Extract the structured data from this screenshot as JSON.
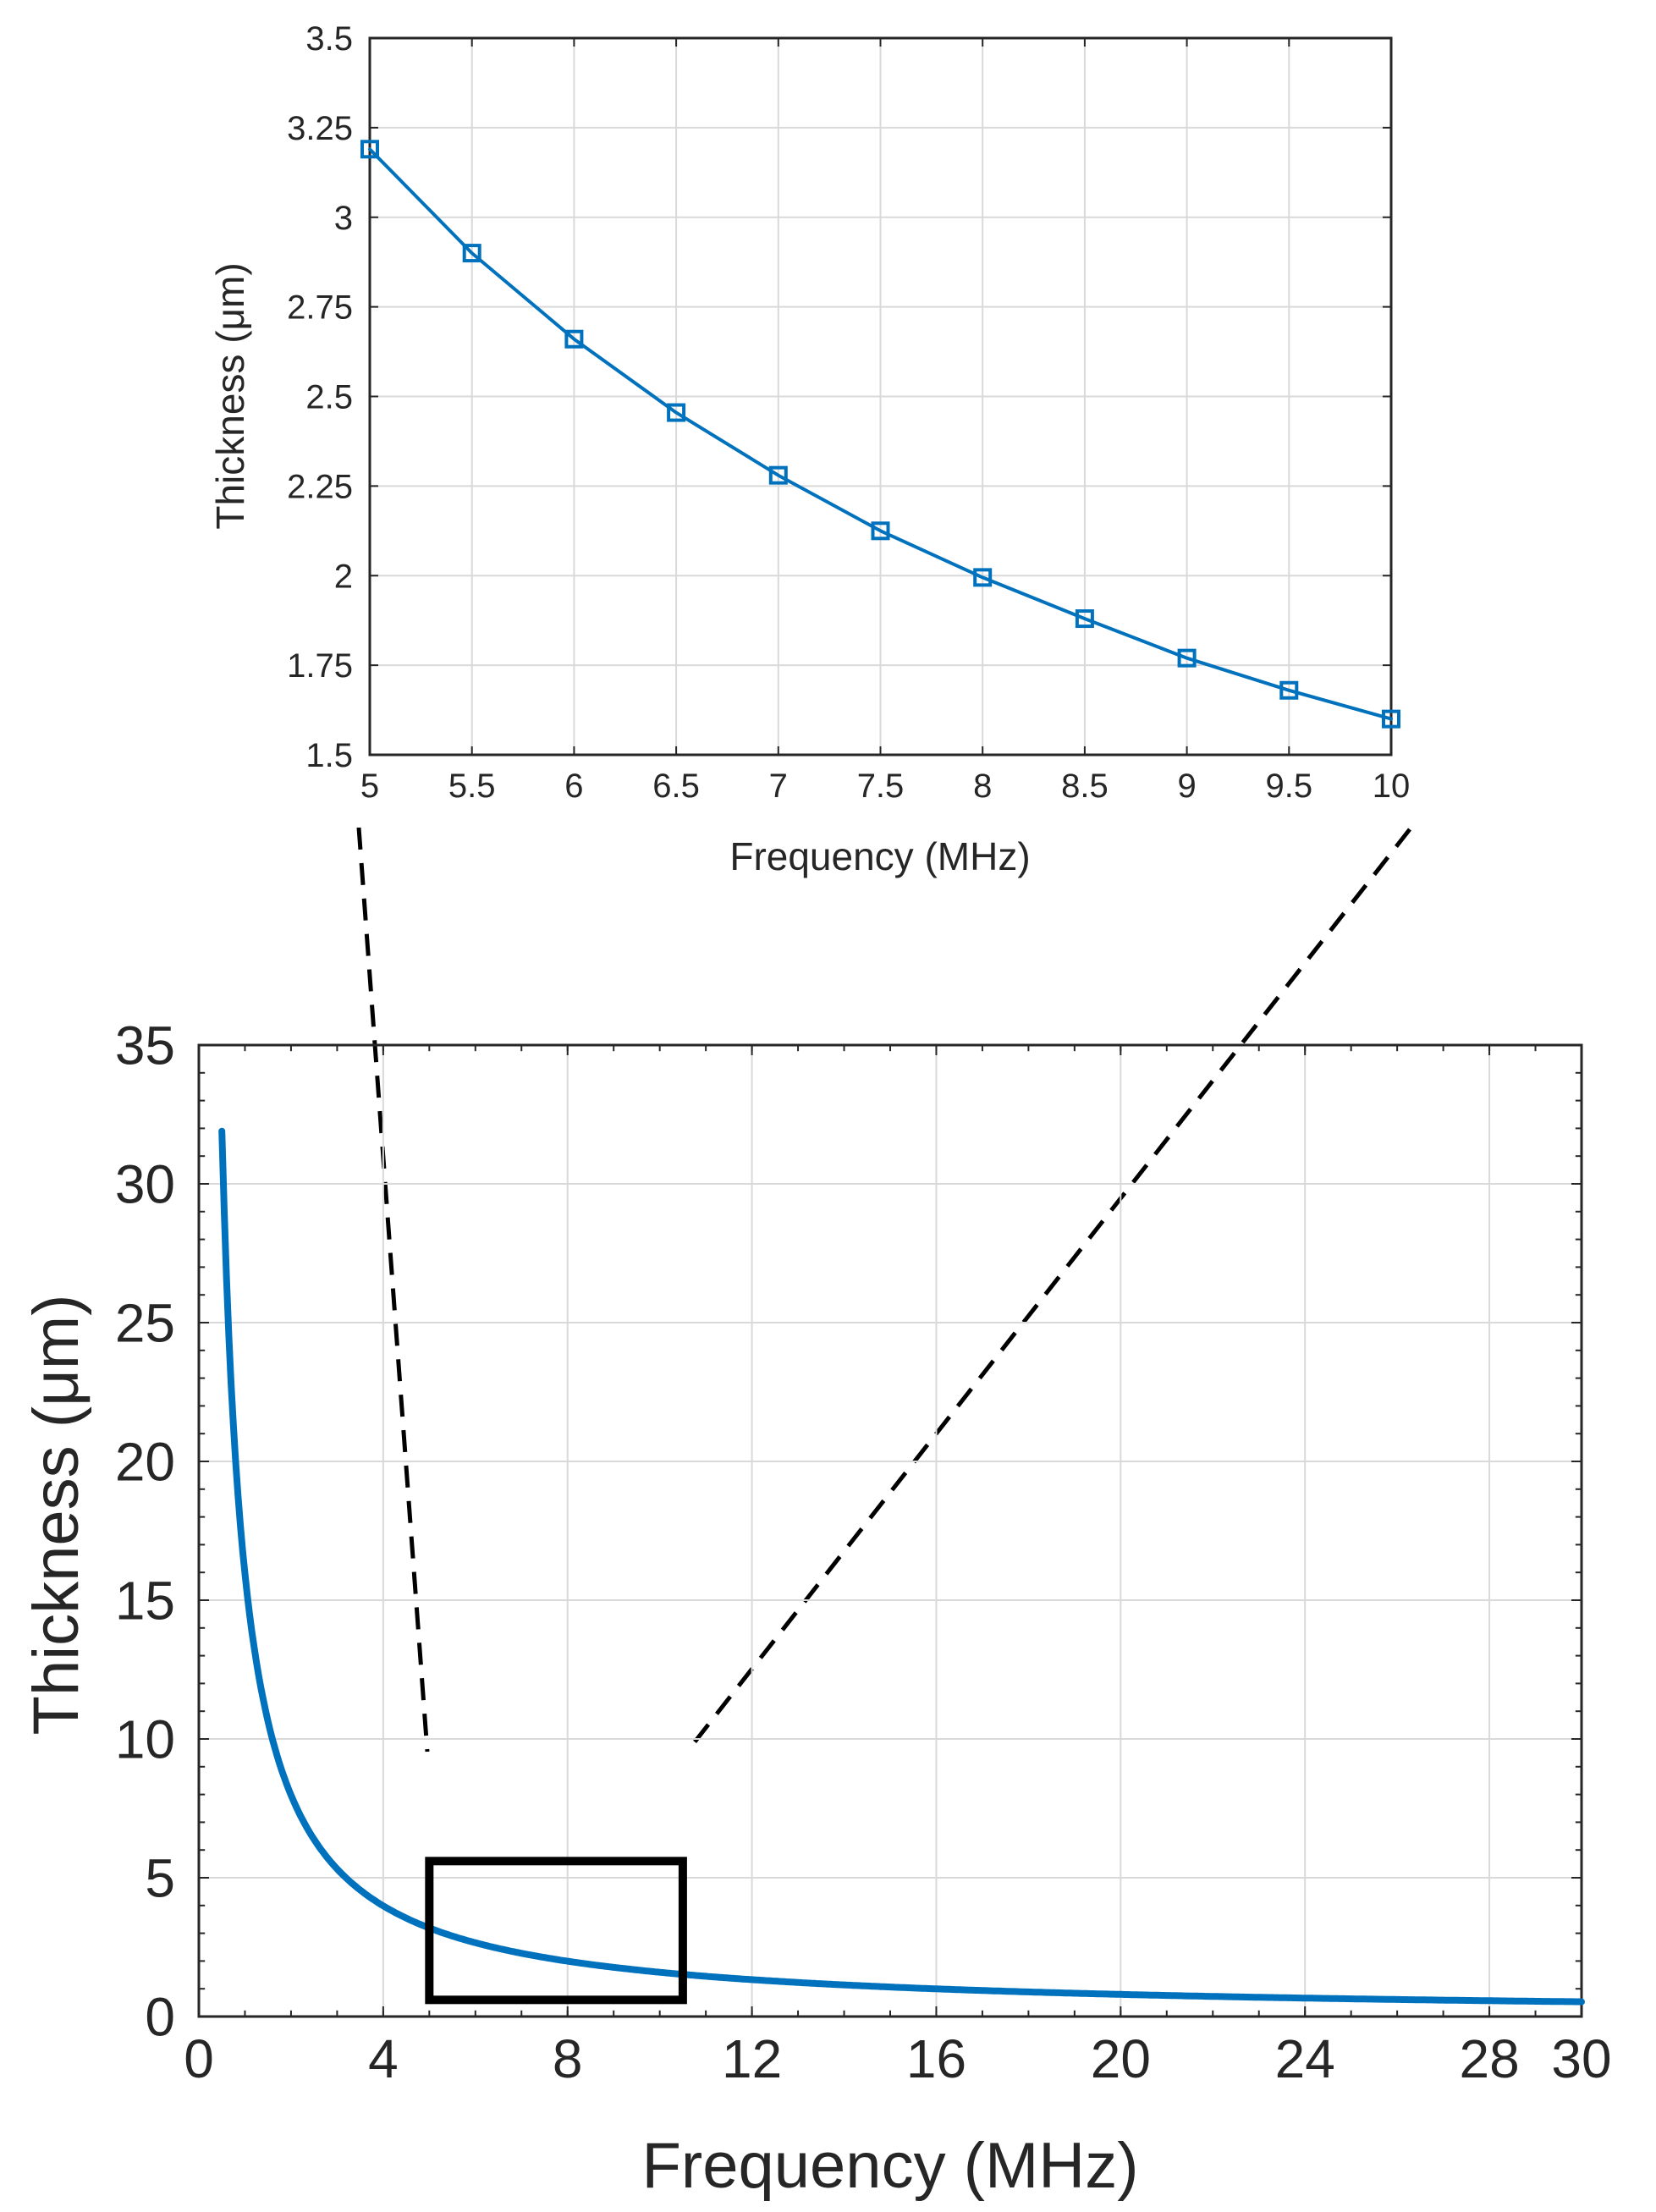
{
  "chart_data": [
    {
      "id": "inset",
      "type": "line",
      "xlabel": "Frequency (MHz)",
      "ylabel": "Thickness (μm)",
      "xlim": [
        5,
        10
      ],
      "ylim": [
        1.5,
        3.5
      ],
      "grid": true,
      "xticks": [
        5,
        5.5,
        6,
        6.5,
        7,
        7.5,
        8,
        8.5,
        9,
        9.5,
        10
      ],
      "xtick_labels": [
        "5",
        "5.5",
        "6",
        "6.5",
        "7",
        "7.5",
        "8",
        "8.5",
        "9",
        "9.5",
        "10"
      ],
      "yticks": [
        1.5,
        1.75,
        2,
        2.25,
        2.5,
        2.75,
        3,
        3.25,
        3.5
      ],
      "ytick_labels": [
        "1.5",
        "1.75",
        "2",
        "2.25",
        "2.5",
        "2.75",
        "3",
        "3.25",
        "3.5"
      ],
      "markers": "square",
      "series": [
        {
          "name": "Thickness",
          "color": "#0072BD",
          "x": [
            5,
            5.5,
            6,
            6.5,
            7,
            7.5,
            8,
            8.5,
            9,
            9.5,
            10
          ],
          "y": [
            3.19,
            2.9,
            2.66,
            2.455,
            2.28,
            2.125,
            1.995,
            1.88,
            1.77,
            1.68,
            1.6
          ]
        }
      ]
    },
    {
      "id": "main",
      "type": "line",
      "xlabel": "Frequency (MHz)",
      "ylabel": "Thickness (μm)",
      "xlim": [
        0,
        30
      ],
      "ylim": [
        0,
        35
      ],
      "grid": true,
      "xticks": [
        0,
        4,
        8,
        12,
        16,
        20,
        24,
        28,
        30
      ],
      "xtick_labels": [
        "0",
        "4",
        "8",
        "12",
        "16",
        "20",
        "24",
        "28",
        "30"
      ],
      "yticks": [
        0,
        5,
        10,
        15,
        20,
        25,
        30,
        35
      ],
      "ytick_labels": [
        "0",
        "5",
        "10",
        "15",
        "20",
        "25",
        "30",
        "35"
      ],
      "zoom_region": {
        "x": [
          5,
          10.5
        ],
        "y": [
          0.6,
          5.6
        ]
      },
      "series": [
        {
          "name": "Thickness",
          "color": "#0072BD",
          "x": [
            0.5,
            1.0,
            1.5,
            2.0,
            2.5,
            3.0,
            3.5,
            4.0,
            5,
            6,
            7,
            8,
            9,
            10,
            12,
            14,
            16,
            18,
            20,
            22,
            24,
            26,
            28,
            30
          ],
          "y": [
            31.9,
            15.95,
            10.63,
            7.98,
            6.38,
            5.32,
            4.56,
            3.99,
            3.19,
            2.66,
            2.28,
            1.995,
            1.77,
            1.6,
            1.33,
            1.14,
            1.0,
            0.89,
            0.8,
            0.725,
            0.665,
            0.614,
            0.57,
            0.53
          ]
        }
      ]
    }
  ]
}
